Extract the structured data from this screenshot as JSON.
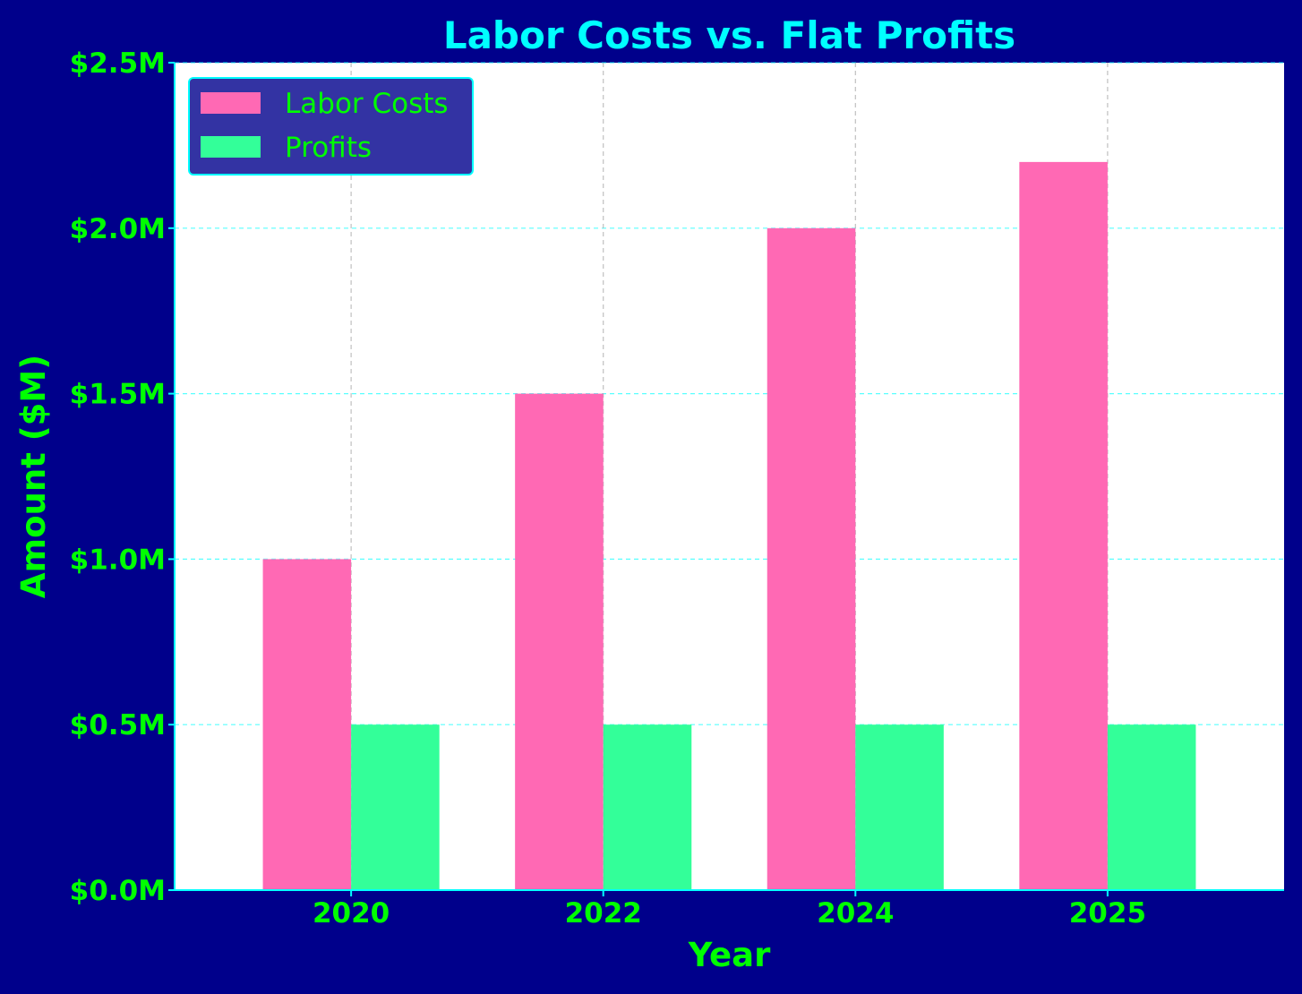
{
  "colors": {
    "background": "#00008B",
    "plot_area": "#FFFFFF",
    "title": "#00FFFF",
    "labels": "#00FF00",
    "axis_spine": "#00FFFF",
    "grid_horizontal": "#00FFFF",
    "grid_vertical": "#B0B0B0",
    "legend_bg": "#3333A3",
    "legend_border": "#00FFFF"
  },
  "chart_data": {
    "type": "bar",
    "title": "Labor Costs vs. Flat Profits",
    "xlabel": "Year",
    "ylabel": "Amount ($M)",
    "categories": [
      "2020",
      "2022",
      "2024",
      "2025"
    ],
    "series": [
      {
        "name": "Labor Costs",
        "color": "#FF69B4",
        "values": [
          1.0,
          1.5,
          2.0,
          2.2
        ]
      },
      {
        "name": "Profits",
        "color": "#33FF99",
        "values": [
          0.5,
          0.5,
          0.5,
          0.5
        ]
      }
    ],
    "ylim": [
      0,
      2.5
    ],
    "yticks": [
      0.0,
      0.5,
      1.0,
      1.5,
      2.0,
      2.5
    ],
    "ytick_labels": [
      "$0.0M",
      "$0.5M",
      "$1.0M",
      "$1.5M",
      "$2.0M",
      "$2.5M"
    ],
    "grid": true,
    "legend_position": "top-left"
  }
}
